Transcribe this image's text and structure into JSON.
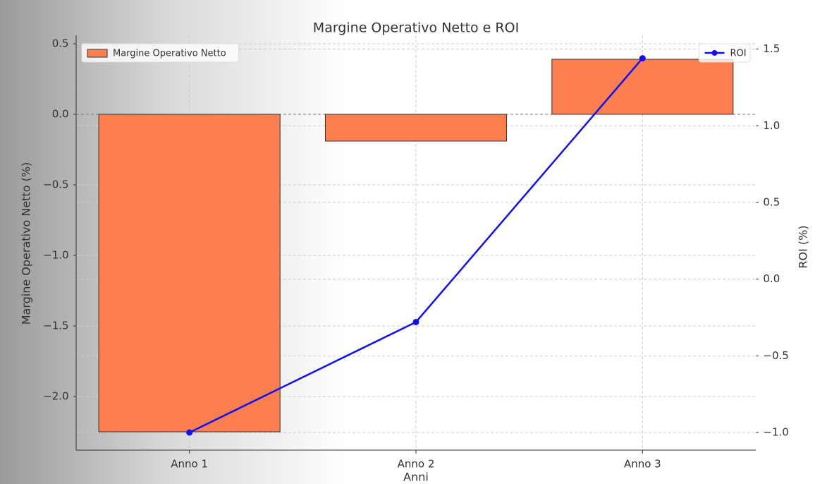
{
  "chart_data": {
    "type": "bar",
    "title": "Margine Operativo Netto e ROI",
    "x_label": "Anni",
    "y_label": "Margine Operativo Netto (%)",
    "y2_label": "ROI (%)",
    "categories": [
      "Anno 1",
      "Anno 2",
      "Anno 3"
    ],
    "series": [
      {
        "name": "Margine Operativo Netto",
        "type": "bar",
        "axis": "y",
        "color": "#fd7f4f",
        "values": [
          -2.25,
          -0.19,
          0.39
        ],
        "legend": "upper left"
      },
      {
        "name": "ROI",
        "type": "line",
        "axis": "y2",
        "color": "#1010f0",
        "values": [
          -1.0,
          -0.28,
          1.44
        ],
        "legend": "upper right"
      }
    ],
    "ylim": [
      -2.38,
      0.56
    ],
    "yticks": [
      {
        "value": -2,
        "label": "−2.0"
      },
      {
        "value": -1.5,
        "label": "−1.5"
      },
      {
        "value": -1,
        "label": "−1.0"
      },
      {
        "value": -0.5,
        "label": "−0.5"
      },
      {
        "value": 0,
        "label": "0.0"
      },
      0.5
    ],
    "y2lim": [
      -1.115,
      1.59
    ],
    "y2ticks": [
      {
        "value": -1,
        "label": "−1.0"
      },
      {
        "value": -0.5,
        "label": "−0.5"
      },
      {
        "value": 0,
        "label": "0.0"
      },
      0.5,
      {
        "value": 1,
        "label": "1.0"
      },
      1.5
    ],
    "grid": true
  }
}
